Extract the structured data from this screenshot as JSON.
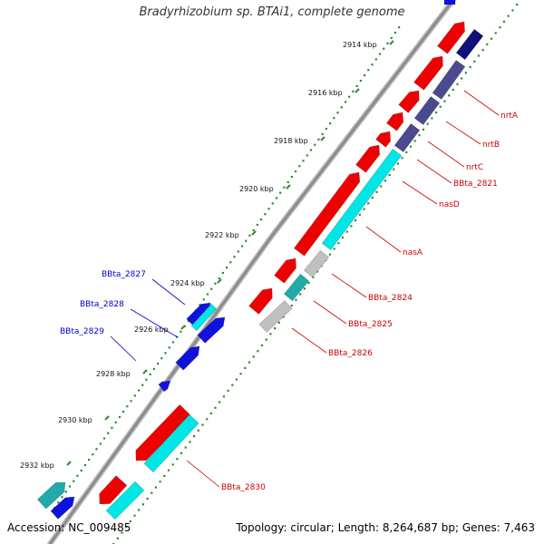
{
  "title": "Bradyrhizobium sp. BTAi1, complete genome",
  "footer": {
    "accession": "Accession: NC_009485",
    "summary": "Topology: circular; Length: 8,264,687 bp; Genes: 7,463"
  },
  "ticks": [
    "2914 kbp",
    "2916 kbp",
    "2918 kbp",
    "2920 kbp",
    "2922 kbp",
    "2924 kbp",
    "2926 kbp",
    "2928 kbp",
    "2930 kbp",
    "2932 kbp"
  ],
  "colors": {
    "backbone": "#8c8c8c",
    "tick_dots": "#2e8b2e",
    "forward_label": "#0000cc",
    "reverse_label": "#cc0000",
    "red": "#ee0000",
    "blue": "#1111dd",
    "cyan": "#00e5e5",
    "dark_blue": "#10107a",
    "slate": "#4a4a90",
    "teal": "#22aaaa",
    "gray": "#c0c0c0"
  },
  "gene_labels_forward": [
    "BBta_2827",
    "BBta_2828",
    "BBta_2829"
  ],
  "gene_labels_reverse": [
    "nrtA",
    "nrtB",
    "nrtC",
    "BBta_2821",
    "nasD",
    "nasA",
    "BBta_2824",
    "BBta_2825",
    "BBta_2826",
    "BBta_2830"
  ]
}
